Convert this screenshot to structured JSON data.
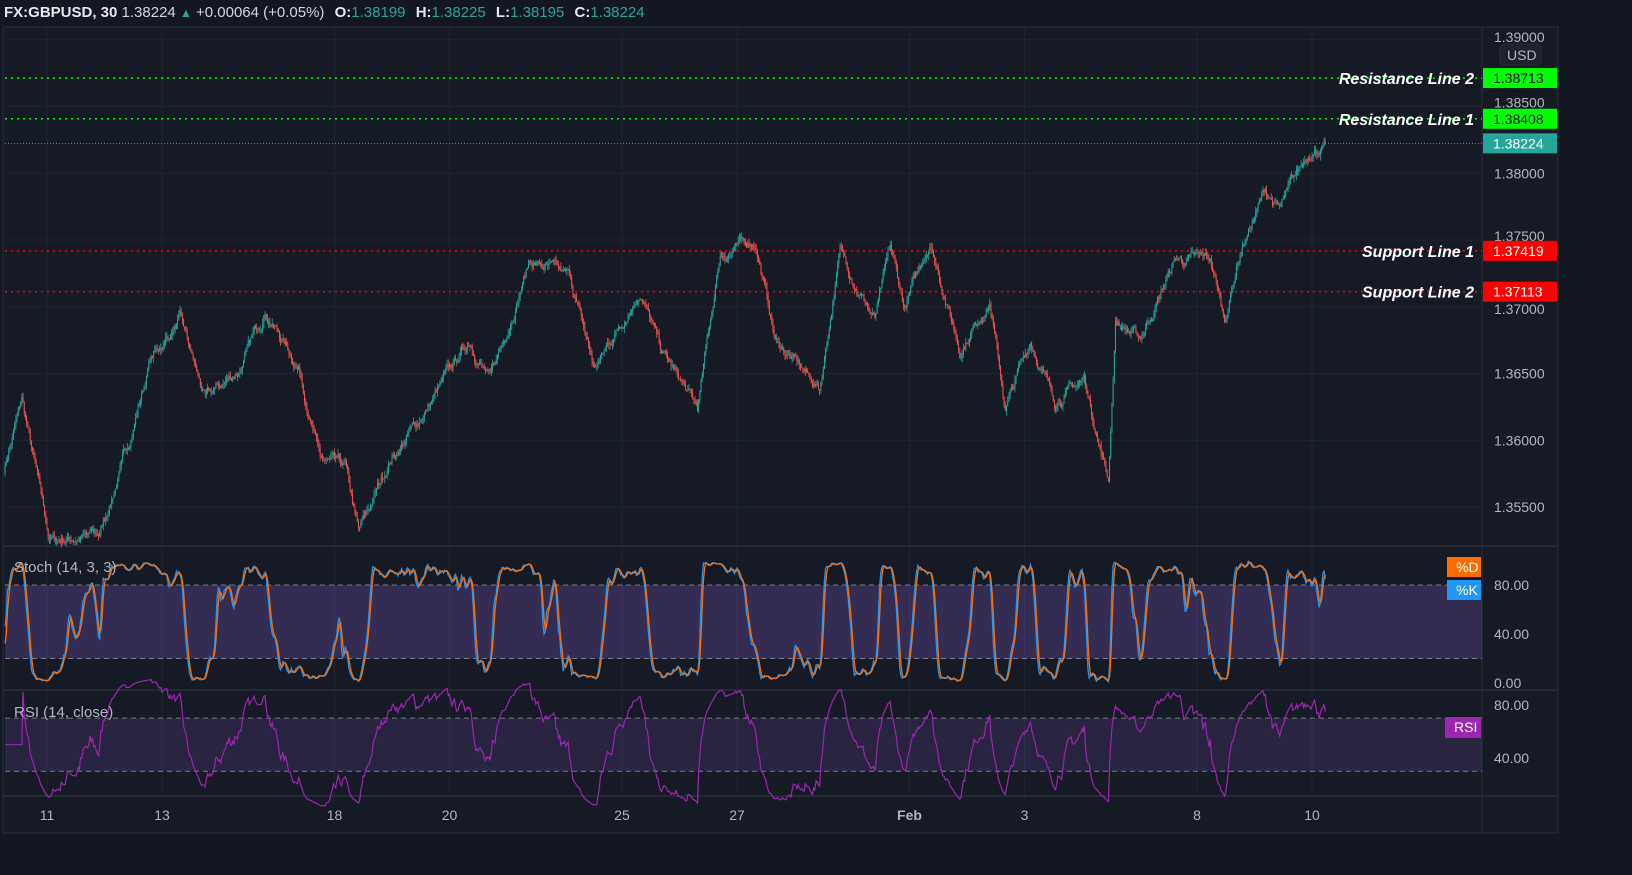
{
  "header": {
    "symbol": "FX:GBPUSD, 30",
    "last": "1.38224",
    "change": "+0.00064 (+0.05%)",
    "o_label": "O:",
    "o": "1.38199",
    "h_label": "H:",
    "h": "1.38225",
    "l_label": "L:",
    "l": "1.38195",
    "c_label": "C:",
    "c": "1.38224"
  },
  "currency_button": "USD",
  "colors": {
    "background": "#131722",
    "up": "#26a69a",
    "down": "#ef5350",
    "resistance": "#00ff00",
    "support": "#ff0000",
    "stoch_k": "#2196f3",
    "stoch_d": "#ff6d00",
    "rsi": "#9c27b0",
    "last_price": "#26a69a"
  },
  "chart_data": [
    {
      "type": "candlestick",
      "timeframe": "30",
      "price_axis_ticks": [
        "1.39000",
        "1.38500",
        "1.38000",
        "1.37500",
        "1.37000",
        "1.36500",
        "1.36000",
        "1.35500"
      ],
      "time_axis_ticks": [
        "11",
        "13",
        "18",
        "20",
        "25",
        "27",
        "Feb",
        "3",
        "8",
        "10"
      ],
      "trading_days": [
        "Jan 8",
        "Jan 11",
        "Jan 12",
        "Jan 13",
        "Jan 14",
        "Jan 15",
        "Jan 18",
        "Jan 19",
        "Jan 20",
        "Jan 21",
        "Jan 22",
        "Jan 25",
        "Jan 26",
        "Jan 27",
        "Jan 28",
        "Jan 29",
        "Feb 1",
        "Feb 2",
        "Feb 3",
        "Feb 4",
        "Feb 5",
        "Feb 8",
        "Feb 9",
        "Feb 10"
      ],
      "approx_close_path": [
        [
          "Jan 8 06:00",
          1.3578
        ],
        [
          "Jan 8 13:30",
          1.363
        ],
        [
          "Jan 11 01:00",
          1.3525
        ],
        [
          "Jan 11 22:00",
          1.3529
        ],
        [
          "Jan 12 10:30",
          1.36
        ],
        [
          "Jan 12 19:00",
          1.366
        ],
        [
          "Jan 13 07:30",
          1.369
        ],
        [
          "Jan 13 18:00",
          1.363
        ],
        [
          "Jan 14 08:30",
          1.3653
        ],
        [
          "Jan 14 19:00",
          1.3698
        ],
        [
          "Jan 15 09:30",
          1.3653
        ],
        [
          "Jan 15 18:00",
          1.3585
        ],
        [
          "Jan 18 04:30",
          1.3578
        ],
        [
          "Jan 18 10:00",
          1.3529
        ],
        [
          "Jan 18 23:00",
          1.3585
        ],
        [
          "Jan 19 11:30",
          1.3615
        ],
        [
          "Jan 20 08:30",
          1.3675
        ],
        [
          "Jan 20 17:00",
          1.3645
        ],
        [
          "Jan 21 09:30",
          1.3735
        ],
        [
          "Jan 22 02:30",
          1.372
        ],
        [
          "Jan 22 12:30",
          1.3653
        ],
        [
          "Jan 25 07:30",
          1.3713
        ],
        [
          "Jan 25 16:00",
          1.3668
        ],
        [
          "Jan 26 07:30",
          1.3623
        ],
        [
          "Jan 26 17:00",
          1.3739
        ],
        [
          "Jan 27 07:30",
          1.375
        ],
        [
          "Jan 27 16:00",
          1.3675
        ],
        [
          "Jan 28 10:30",
          1.3638
        ],
        [
          "Jan 28 19:00",
          1.3742
        ],
        [
          "Jan 29 09:30",
          1.369
        ],
        [
          "Jan 29 16:00",
          1.3742
        ],
        [
          "Jan 29 22:00",
          1.3698
        ],
        [
          "Feb 1 08:30",
          1.375
        ],
        [
          "Feb 1 21:00",
          1.3668
        ],
        [
          "Feb 2 09:30",
          1.3705
        ],
        [
          "Feb 2 16:00",
          1.3623
        ],
        [
          "Feb 3 02:30",
          1.3675
        ],
        [
          "Feb 3 12:30",
          1.363
        ],
        [
          "Feb 4 01:00",
          1.3645
        ],
        [
          "Feb 4 11:00",
          1.357
        ],
        [
          "Feb 4 14:00",
          1.369
        ],
        [
          "Feb 5 00:00",
          1.3675
        ],
        [
          "Feb 5 15:00",
          1.3735
        ],
        [
          "Feb 8 05:30",
          1.3735
        ],
        [
          "Feb 8 11:30",
          1.369
        ],
        [
          "Feb 8 18:00",
          1.3742
        ],
        [
          "Feb 9 04:30",
          1.3787
        ],
        [
          "Feb 9 10:30",
          1.3772
        ],
        [
          "Feb 9 23:00",
          1.3817
        ],
        [
          "Feb 10 05:30",
          1.38224
        ]
      ],
      "levels": [
        {
          "label": "Resistance Line 2",
          "price": "1.38713",
          "kind": "resistance"
        },
        {
          "label": "Resistance Line 1",
          "price": "1.38408",
          "kind": "resistance"
        },
        {
          "label": "Support Line 1",
          "price": "1.37419",
          "kind": "support"
        },
        {
          "label": "Support Line 2",
          "price": "1.37113",
          "kind": "support"
        }
      ],
      "last_price": "1.38224"
    },
    {
      "type": "line",
      "title": "Stoch (14, 3, 3)",
      "series": [
        {
          "name": "%K"
        },
        {
          "name": "%D"
        }
      ],
      "y_ticks": [
        "80.00",
        "40.00",
        "0.00"
      ],
      "band": [
        20,
        80
      ]
    },
    {
      "type": "line",
      "title": "RSI (14, close)",
      "series": [
        {
          "name": "RSI"
        }
      ],
      "y_ticks": [
        "80.00",
        "40.00"
      ],
      "band": [
        30,
        70
      ]
    }
  ]
}
